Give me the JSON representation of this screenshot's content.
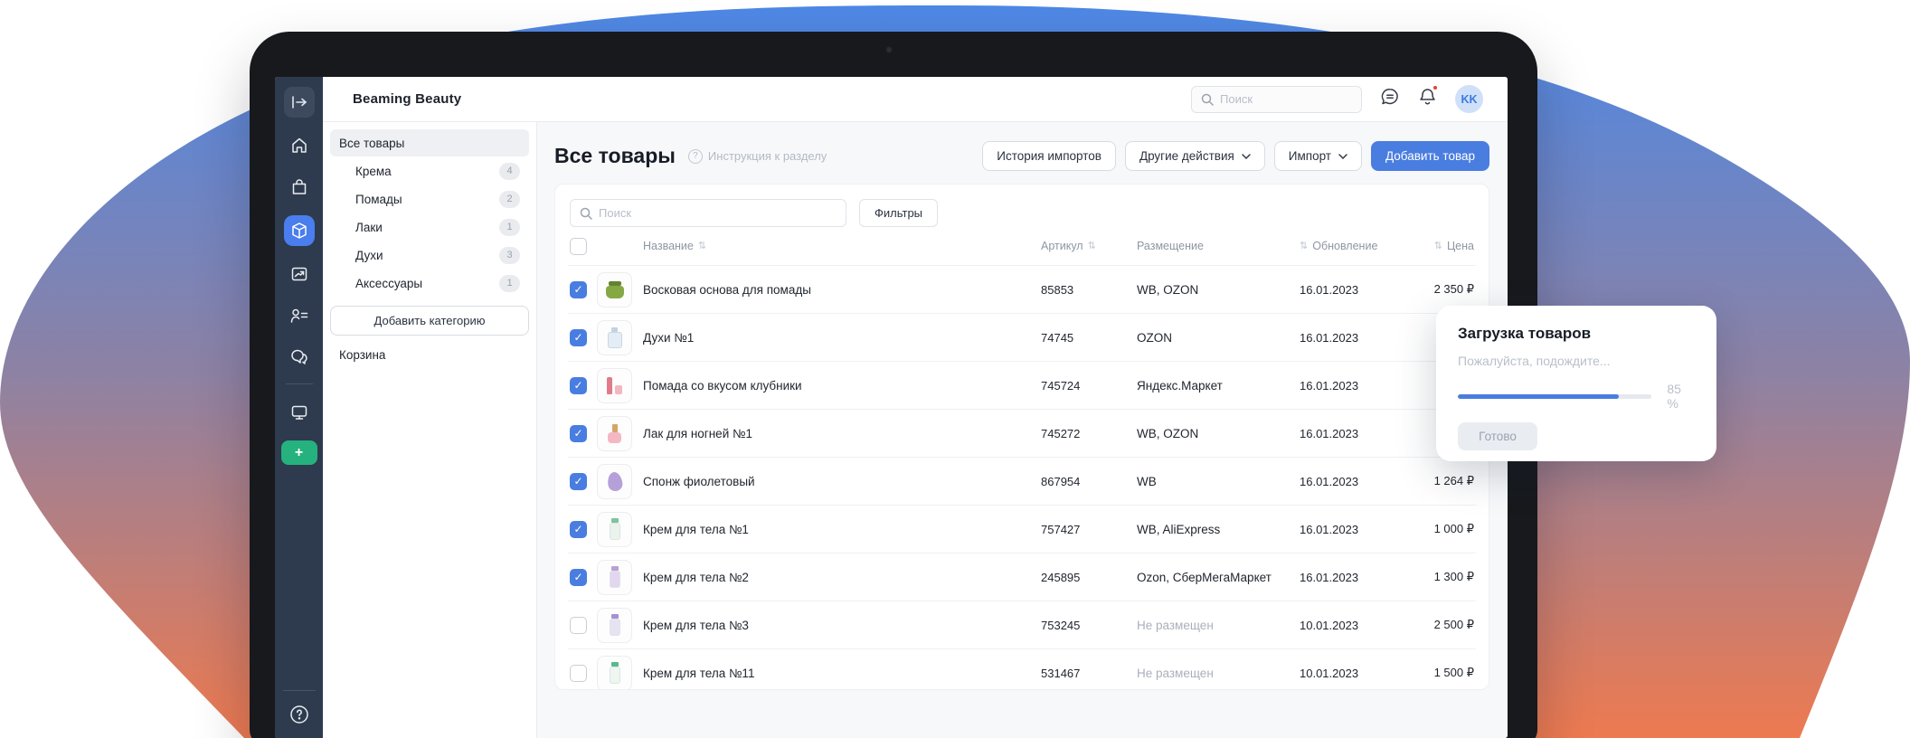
{
  "colors": {
    "accent_blue": "#4a7de0",
    "rail_bg": "#2e3a4d",
    "rail_active_bg": "#4a7ded",
    "plus_green": "#25b27e",
    "notification_dot": "#e6402c",
    "avatar_bg": "#cfe0f8",
    "avatar_text": "#3b7ae0",
    "gradient_top": "#4d88e6",
    "gradient_mid": "#8d82a4",
    "gradient_bottom": "#ed7a50"
  },
  "topbar": {
    "app_title": "Beaming Beauty",
    "search_placeholder": "Поиск",
    "avatar_initials": "KK"
  },
  "icon_rail": {
    "icons": [
      "collapse-icon",
      "home-icon",
      "shopping-bag-icon",
      "package-icon",
      "chart-icon",
      "users-icon",
      "chat-icon",
      "monitor-icon",
      "plus-button",
      "help-icon"
    ],
    "active_icon": "package-icon",
    "plus_label": "+"
  },
  "categories": {
    "items": [
      {
        "label": "Все товары",
        "count": "",
        "selected": true,
        "sub": false
      },
      {
        "label": "Крема",
        "count": "4",
        "selected": false,
        "sub": true
      },
      {
        "label": "Помады",
        "count": "2",
        "selected": false,
        "sub": true
      },
      {
        "label": "Лаки",
        "count": "1",
        "selected": false,
        "sub": true
      },
      {
        "label": "Духи",
        "count": "3",
        "selected": false,
        "sub": true
      },
      {
        "label": "Аксессуары",
        "count": "1",
        "selected": false,
        "sub": true
      }
    ],
    "add_button_label": "Добавить категорию",
    "trash_label": "Корзина"
  },
  "page": {
    "title": "Все товары",
    "instruction_label": "Инструкция к разделу",
    "buttons": {
      "import_history": "История импортов",
      "other_actions": "Другие действия",
      "import": "Импорт",
      "add_product": "Добавить товар"
    }
  },
  "table": {
    "search_placeholder": "Поиск",
    "filters_label": "Фильтры",
    "columns": {
      "name": "Название",
      "sku": "Артикул",
      "placement": "Размещение",
      "updated": "Обновление",
      "price": "Цена"
    },
    "rows": [
      {
        "checked": true,
        "name": "Восковая основа для помады",
        "sku": "85853",
        "placement": "WB, OZON",
        "placement_muted": false,
        "updated": "16.01.2023",
        "price": "2 350 ₽",
        "img": {
          "shape": "jar",
          "a": "#85a845",
          "b": "#64822f"
        }
      },
      {
        "checked": true,
        "name": "Духи №1",
        "sku": "74745",
        "placement": "OZON",
        "placement_muted": false,
        "updated": "16.01.2023",
        "price": "",
        "img": {
          "shape": "perfume",
          "a": "#e4edf6",
          "b": "#c3d2e2"
        }
      },
      {
        "checked": true,
        "name": "Помада со вкусом клубники",
        "sku": "745724",
        "placement": "Яндекс.Маркет",
        "placement_muted": false,
        "updated": "16.01.2023",
        "price": "",
        "img": {
          "shape": "lipstick",
          "a": "#e07b8c",
          "b": "#f2b8c0"
        }
      },
      {
        "checked": true,
        "name": "Лак для ногней №1",
        "sku": "745272",
        "placement": "WB, OZON",
        "placement_muted": false,
        "updated": "16.01.2023",
        "price": "",
        "img": {
          "shape": "polish",
          "a": "#f5b7c4",
          "b": "#d8a36a"
        }
      },
      {
        "checked": true,
        "name": "Спонж фиолетовый",
        "sku": "867954",
        "placement": "WB",
        "placement_muted": false,
        "updated": "16.01.2023",
        "price": "1 264 ₽",
        "img": {
          "shape": "egg",
          "a": "#b5a0da",
          "b": "#b5a0da"
        }
      },
      {
        "checked": true,
        "name": "Крем для тела №1",
        "sku": "757427",
        "placement": "WB, AliExpress",
        "placement_muted": false,
        "updated": "16.01.2023",
        "price": "1 000 ₽",
        "img": {
          "shape": "bottle",
          "a": "#eaf3ec",
          "b": "#7fc29b"
        }
      },
      {
        "checked": true,
        "name": "Крем для тела №2",
        "sku": "245895",
        "placement": "Ozon, СберМегаМаркет",
        "placement_muted": false,
        "updated": "16.01.2023",
        "price": "1 300 ₽",
        "img": {
          "shape": "bottle",
          "a": "#e3d7ef",
          "b": "#b9a0d6"
        }
      },
      {
        "checked": false,
        "name": "Крем для тела №3",
        "sku": "753245",
        "placement": "Не размещен",
        "placement_muted": true,
        "updated": "10.01.2023",
        "price": "2 500 ₽",
        "img": {
          "shape": "bottle",
          "a": "#e7e2f2",
          "b": "#a98fd1"
        }
      },
      {
        "checked": false,
        "name": "Крем для тела №11",
        "sku": "531467",
        "placement": "Не размещен",
        "placement_muted": true,
        "updated": "10.01.2023",
        "price": "1 500 ₽",
        "img": {
          "shape": "bottle",
          "a": "#eef6f0",
          "b": "#58b98a"
        }
      }
    ]
  },
  "toast": {
    "title": "Загрузка товаров",
    "subtitle": "Пожалуйста, подождите...",
    "percent": 85,
    "percent_label": "85 %",
    "done_label": "Готово"
  }
}
